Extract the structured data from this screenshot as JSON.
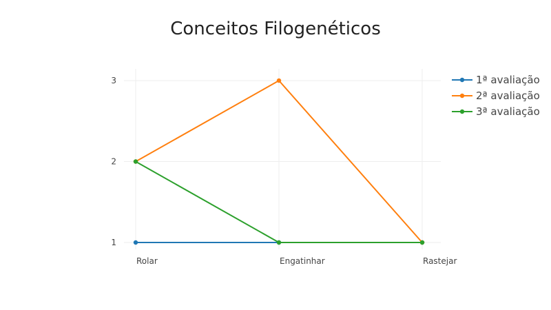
{
  "chart_data": {
    "type": "line",
    "title": "Conceitos Filogenéticos",
    "xlabel": "",
    "ylabel": "",
    "categories": [
      "Rolar",
      "Engatinhar",
      "Rastejar"
    ],
    "ylim": [
      1,
      3
    ],
    "yticks": [
      "1",
      "2",
      "3"
    ],
    "grid": true,
    "legend_position": "top-right",
    "series": [
      {
        "name": "1ª avaliação",
        "color": "#1f77b4",
        "values": [
          1,
          1,
          1
        ]
      },
      {
        "name": "2ª avaliação",
        "color": "#ff7f0e",
        "values": [
          2,
          3,
          1
        ]
      },
      {
        "name": "3ª avaliação",
        "color": "#2ca02c",
        "values": [
          2,
          1,
          1
        ]
      }
    ]
  }
}
